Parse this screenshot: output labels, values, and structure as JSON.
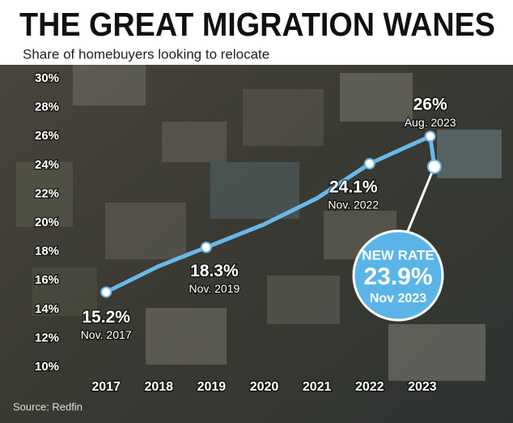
{
  "chart_data": {
    "type": "line",
    "title": "THE GREAT MIGRATION WANES",
    "subtitle": "Share of homebuyers looking to relocate",
    "source": "Source: Redfin",
    "x": [
      2017,
      2018,
      2018.9,
      2020,
      2021,
      2022,
      2023.15,
      2023.23
    ],
    "series": [
      {
        "name": "Share of homebuyers looking to relocate",
        "color": "#6ab8e8",
        "values": [
          15.2,
          17.0,
          18.3,
          19.9,
          21.7,
          24.1,
          26,
          23.9
        ]
      }
    ],
    "xlim": [
      2015.6,
      2024.2
    ],
    "xticks": [
      2017,
      2018,
      2019,
      2020,
      2021,
      2022,
      2023
    ],
    "ylim": [
      10,
      30
    ],
    "yticks": [
      {
        "value": 10,
        "label": "10%"
      },
      {
        "value": 12,
        "label": "12%"
      },
      {
        "value": 14,
        "label": "14%"
      },
      {
        "value": 16,
        "label": "16%"
      },
      {
        "value": 18,
        "label": "18%"
      },
      {
        "value": 20,
        "label": "20%"
      },
      {
        "value": 22,
        "label": "22%"
      },
      {
        "value": 24,
        "label": "24%"
      },
      {
        "value": 26,
        "label": "26%"
      },
      {
        "value": 28,
        "label": "28%"
      },
      {
        "value": 30,
        "label": "30%"
      }
    ],
    "annotations": [
      {
        "value": 15.2,
        "label": "15.2%",
        "date": "Nov. 2017"
      },
      {
        "value": 18.3,
        "label": "18.3%",
        "date": "Nov. 2019"
      },
      {
        "value": 24.1,
        "label": "24.1%",
        "date": "Nov. 2022"
      },
      {
        "value": 26,
        "label": "26%",
        "date": "Aug. 2023"
      }
    ],
    "new_rate": {
      "heading": "NEW RATE",
      "value": 23.9,
      "label": "23.9%",
      "date": "Nov 2023"
    }
  }
}
